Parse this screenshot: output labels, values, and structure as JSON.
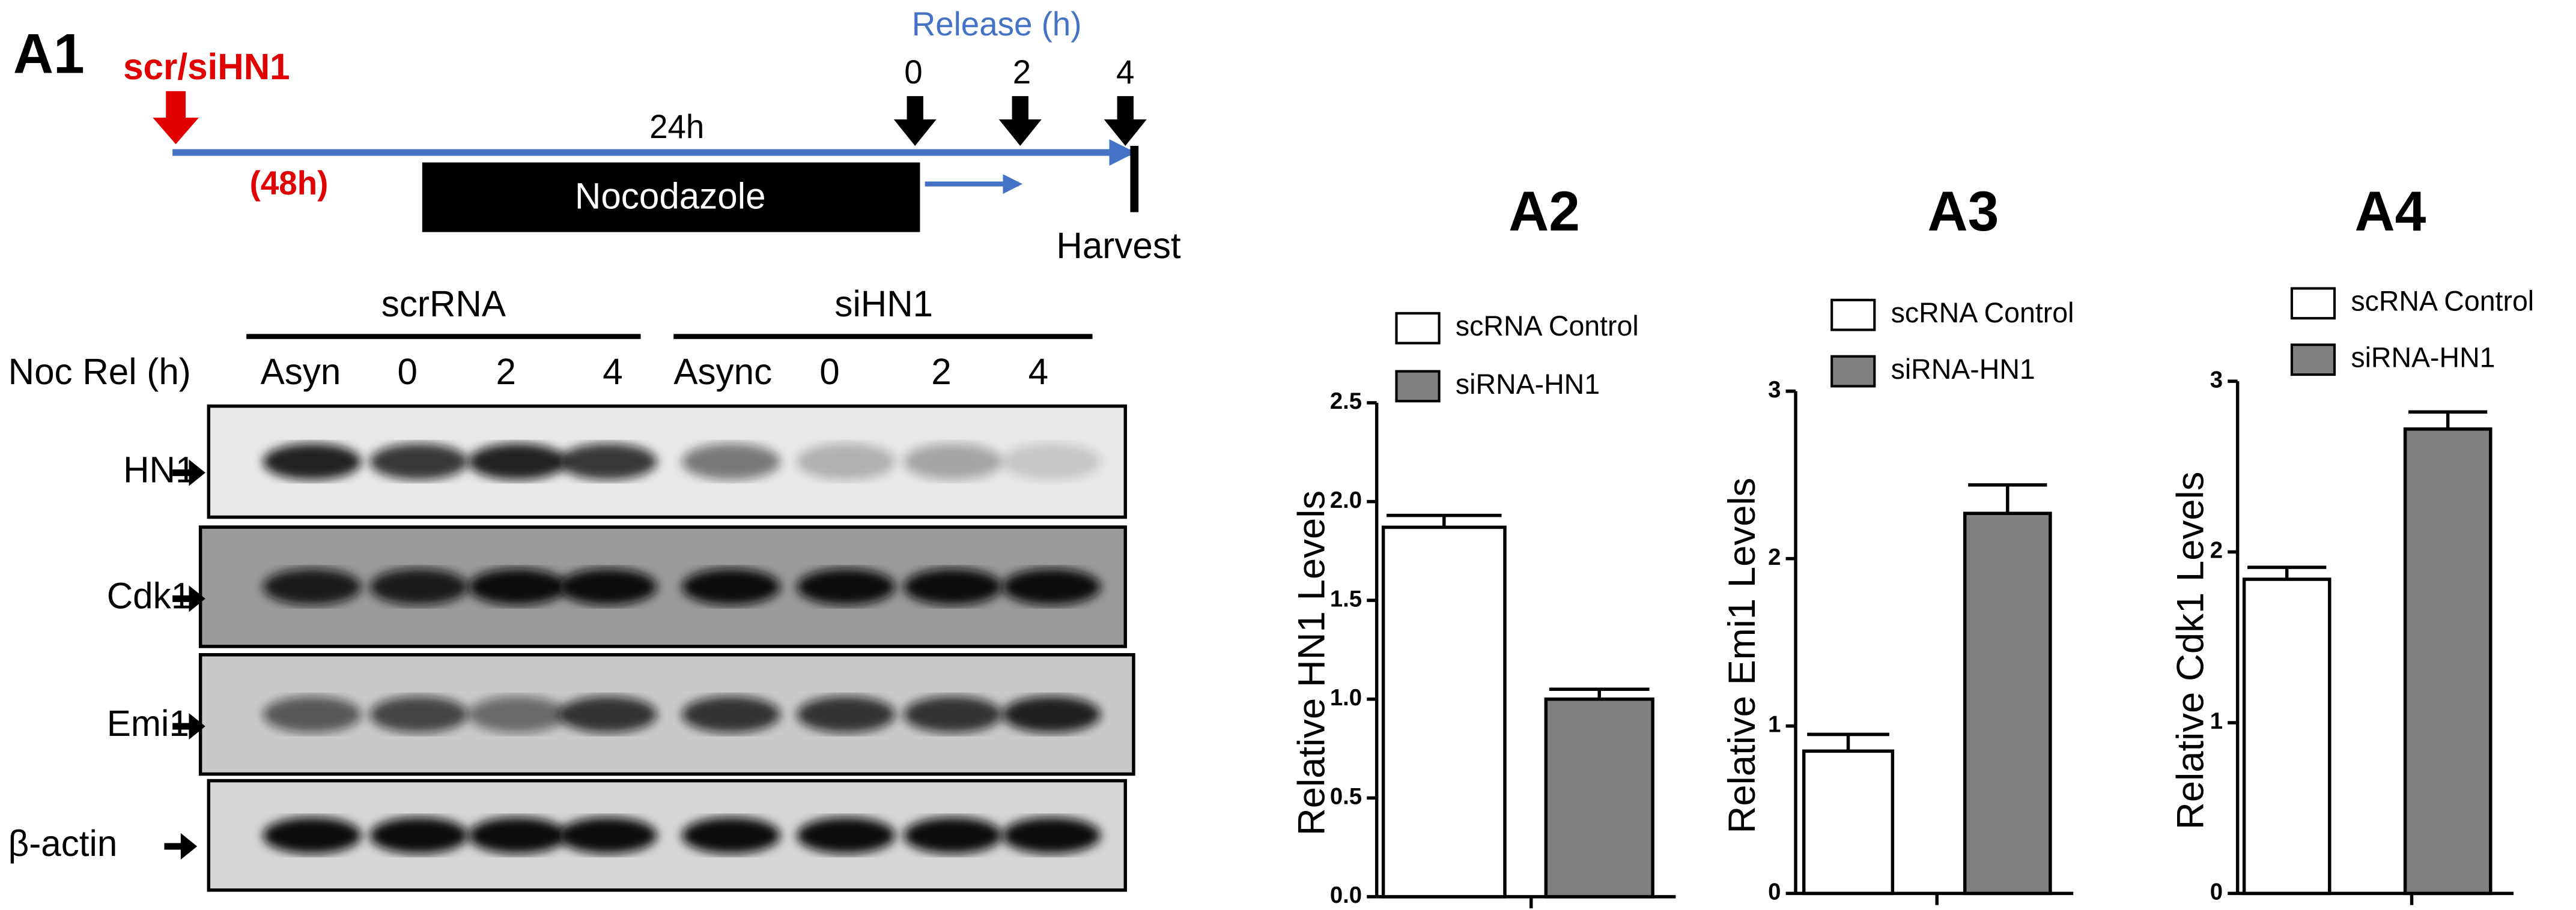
{
  "figure": {
    "panel": "A1",
    "treatment": "scr/siHN1",
    "release": "Release (h)",
    "release_times": [
      "0",
      "2",
      "4"
    ],
    "duration": "24h",
    "total": "(48h)",
    "drug": "Nocodazole",
    "harvest": "Harvest",
    "groups": [
      "scrRNA",
      "siHN1"
    ],
    "row_label": "Noc Rel (h)",
    "lanes": [
      "Asyn",
      "0",
      "2",
      "4",
      "Async",
      "0",
      "2",
      "4"
    ],
    "blots": [
      "HN1",
      "Cdk1",
      "Emi1",
      "β-actin"
    ]
  },
  "chart_data": [
    {
      "type": "bar",
      "title": "A2",
      "ylabel": "Relative HN1 Levels",
      "series": [
        {
          "name": "scRNA Control",
          "color": "#ffffff",
          "values": [
            1.87
          ],
          "errors": [
            0.06
          ]
        },
        {
          "name": "siRNA-HN1",
          "color": "#808080",
          "values": [
            1.0
          ],
          "errors": [
            0.05
          ]
        }
      ],
      "ylim": [
        0,
        2.5
      ],
      "yticks": [
        {
          "value": 0,
          "label": "0.0"
        },
        0.5,
        {
          "value": 1,
          "label": "1.0"
        },
        1.5,
        {
          "value": 2,
          "label": "2.0"
        },
        2.5
      ]
    },
    {
      "type": "bar",
      "title": "A3",
      "ylabel": "Relative Emi1 Levels",
      "series": [
        {
          "name": "scRNA Control",
          "color": "#ffffff",
          "values": [
            0.85
          ],
          "errors": [
            0.1
          ]
        },
        {
          "name": "siRNA-HN1",
          "color": "#808080",
          "values": [
            2.27
          ],
          "errors": [
            0.17
          ]
        }
      ],
      "ylim": [
        0,
        3
      ],
      "yticks": [
        0,
        1,
        2,
        3
      ]
    },
    {
      "type": "bar",
      "title": "A4",
      "ylabel": "Relative Cdk1 Levels",
      "series": [
        {
          "name": "scRNA Control",
          "color": "#ffffff",
          "values": [
            1.84
          ],
          "errors": [
            0.07
          ]
        },
        {
          "name": "siRNA-HN1",
          "color": "#808080",
          "values": [
            2.72
          ],
          "errors": [
            0.1
          ]
        }
      ],
      "ylim": [
        0,
        3
      ],
      "yticks": [
        0,
        1,
        2,
        3
      ]
    }
  ]
}
